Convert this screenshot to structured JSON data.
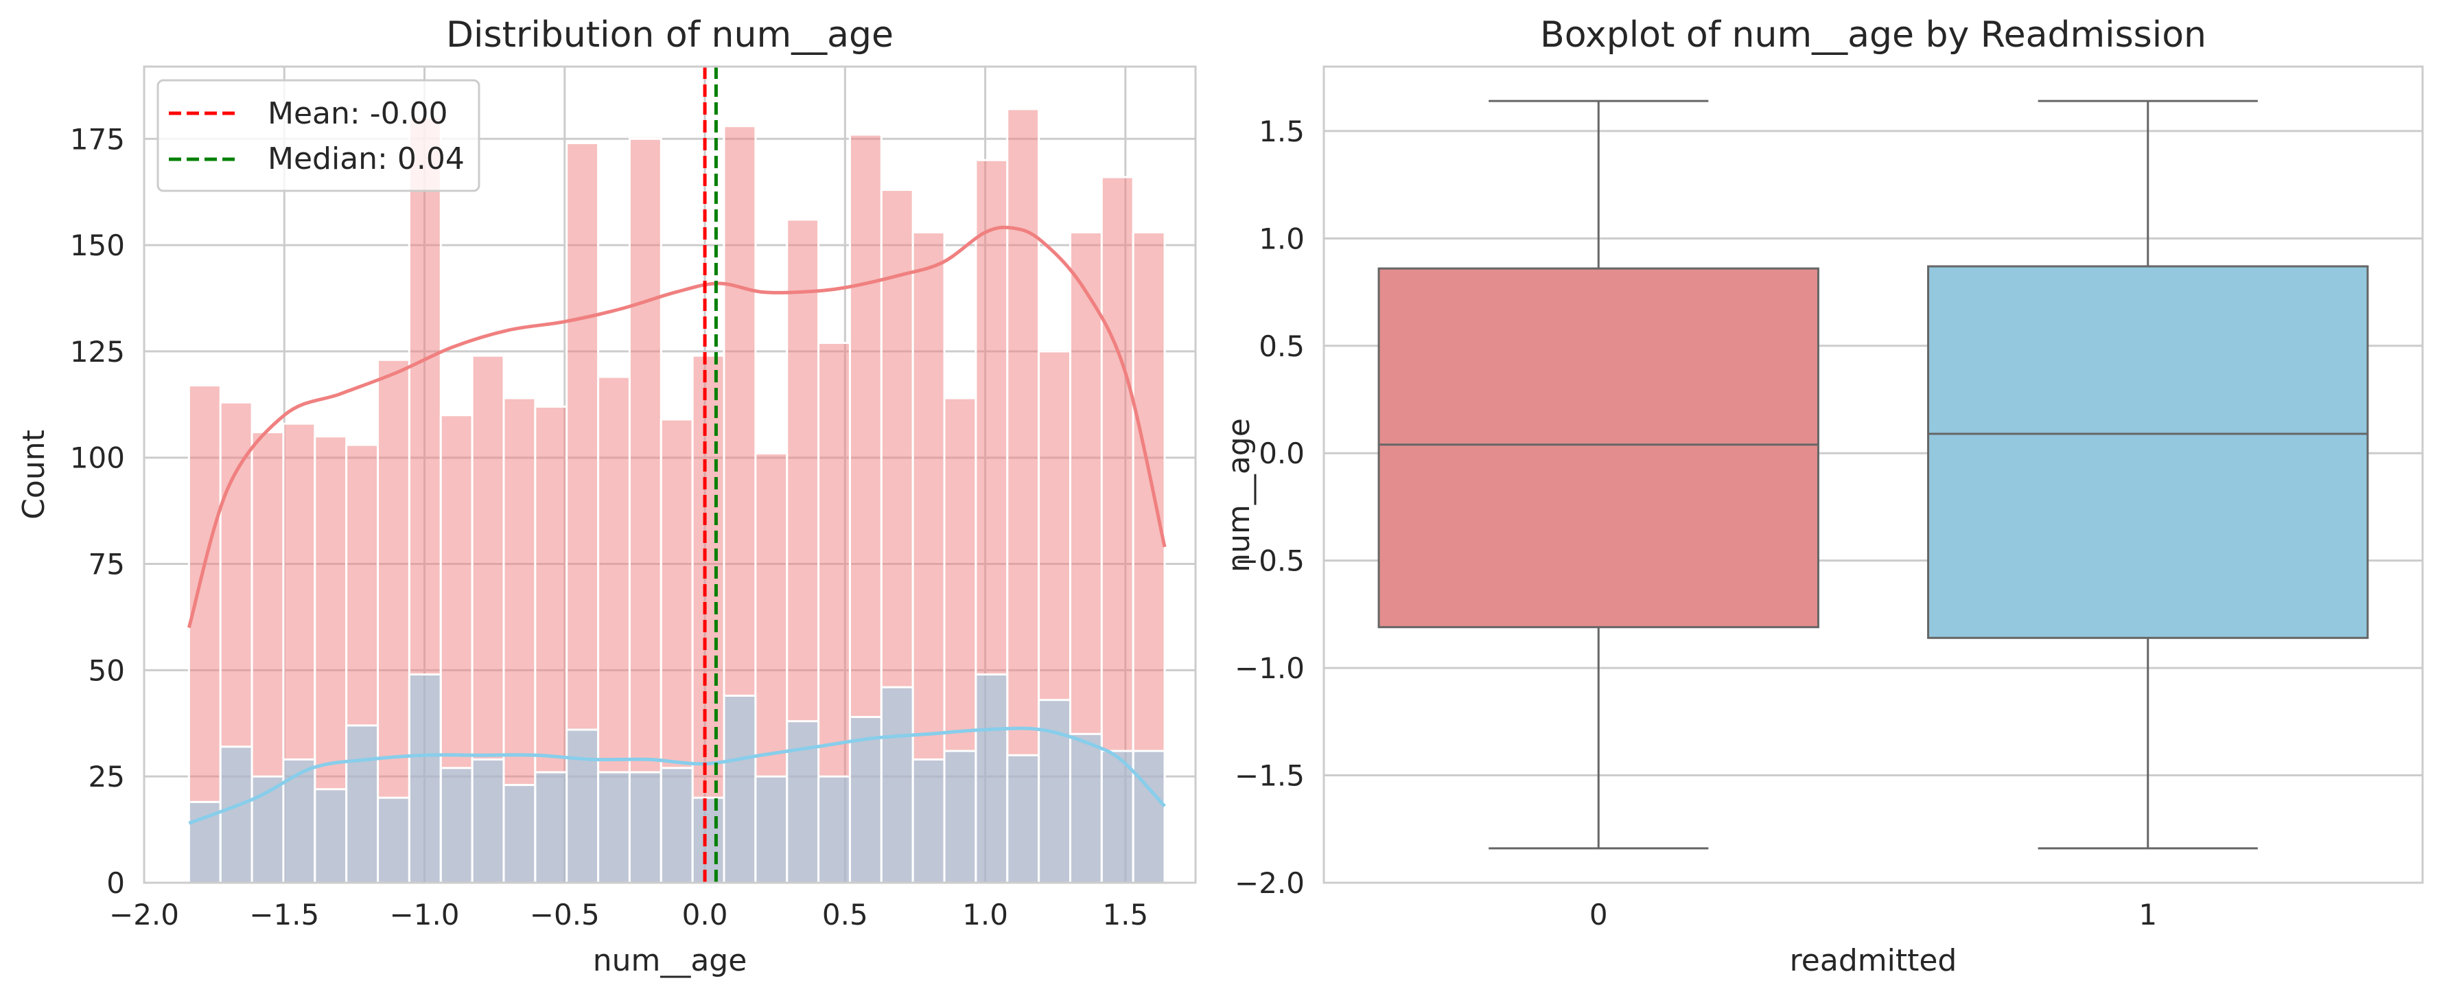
{
  "chart_data": [
    {
      "type": "histogram",
      "title": "Distribution of num__age",
      "xlabel": "num__age",
      "ylabel": "Count",
      "xlim": [
        -2.0,
        1.75
      ],
      "ylim": [
        0,
        192
      ],
      "xticks": [
        -2.0,
        -1.5,
        -1.0,
        -0.5,
        0.0,
        0.5,
        1.0,
        1.5
      ],
      "xtick_labels": [
        "−2.0",
        "−1.5",
        "−1.0",
        "−0.5",
        "0.0",
        "0.5",
        "1.0",
        "1.5"
      ],
      "yticks": [
        0,
        25,
        50,
        75,
        100,
        125,
        150,
        175
      ],
      "ytick_labels": [
        "0",
        "25",
        "50",
        "75",
        "100",
        "125",
        "150",
        "175"
      ],
      "grid": true,
      "legend_position": "top-left",
      "bin_range": [
        -1.84,
        1.64
      ],
      "series": [
        {
          "name": "0",
          "color": "#f08080",
          "counts": [
            117,
            113,
            106,
            108,
            105,
            103,
            123,
            180,
            110,
            124,
            114,
            112,
            174,
            119,
            175,
            109,
            124,
            178,
            101,
            156,
            127,
            176,
            163,
            153,
            114,
            170,
            182,
            125,
            153,
            166,
            153
          ],
          "kde_x": [
            -1.84,
            -1.7,
            -1.5,
            -1.3,
            -1.1,
            -0.9,
            -0.7,
            -0.5,
            -0.3,
            -0.1,
            0.05,
            0.2,
            0.35,
            0.5,
            0.7,
            0.85,
            1.0,
            1.1,
            1.2,
            1.35,
            1.5,
            1.64
          ],
          "kde_y": [
            60,
            93,
            110,
            115,
            120,
            126,
            130,
            132,
            135,
            139,
            141,
            139,
            139,
            140,
            143,
            146,
            153,
            154,
            151,
            140,
            120,
            79
          ]
        },
        {
          "name": "1",
          "color": "#87ceeb",
          "counts": [
            19,
            32,
            25,
            29,
            22,
            37,
            20,
            49,
            27,
            29,
            23,
            26,
            36,
            26,
            26,
            27,
            20,
            44,
            25,
            38,
            25,
            39,
            46,
            29,
            31,
            49,
            30,
            43,
            35,
            31,
            31
          ],
          "kde_x": [
            -1.84,
            -1.6,
            -1.4,
            -1.2,
            -1.0,
            -0.8,
            -0.6,
            -0.4,
            -0.2,
            0.0,
            0.2,
            0.4,
            0.6,
            0.8,
            1.0,
            1.2,
            1.4,
            1.5,
            1.64
          ],
          "kde_y": [
            14,
            20,
            27,
            29,
            30,
            30,
            30,
            29,
            29,
            28,
            30,
            32,
            34,
            35,
            36,
            36,
            32,
            28,
            18
          ]
        }
      ],
      "reference_lines": [
        {
          "label": "Mean: -0.00",
          "x": 0.0,
          "color": "#ff0000",
          "style": "dashed"
        },
        {
          "label": "Median: 0.04",
          "x": 0.04,
          "color": "#008000",
          "style": "dashed"
        }
      ]
    },
    {
      "type": "box",
      "title": "Boxplot of num__age by Readmission",
      "xlabel": "readmitted",
      "ylabel": "num__age",
      "categories": [
        "0",
        "1"
      ],
      "ylim": [
        -2.0,
        1.8
      ],
      "yticks": [
        -2.0,
        -1.5,
        -1.0,
        -0.5,
        0.0,
        0.5,
        1.0,
        1.5
      ],
      "ytick_labels": [
        "−2.0",
        "−1.5",
        "−1.0",
        "−0.5",
        "0.0",
        "0.5",
        "1.0",
        "1.5"
      ],
      "grid": true,
      "boxes": [
        {
          "category": "0",
          "min": -1.84,
          "q1": -0.81,
          "median": 0.04,
          "q3": 0.86,
          "max": 1.64,
          "color": "#e38d8e"
        },
        {
          "category": "1",
          "min": -1.84,
          "q1": -0.86,
          "median": 0.09,
          "q3": 0.87,
          "max": 1.64,
          "color": "#93c8de"
        }
      ]
    }
  ]
}
